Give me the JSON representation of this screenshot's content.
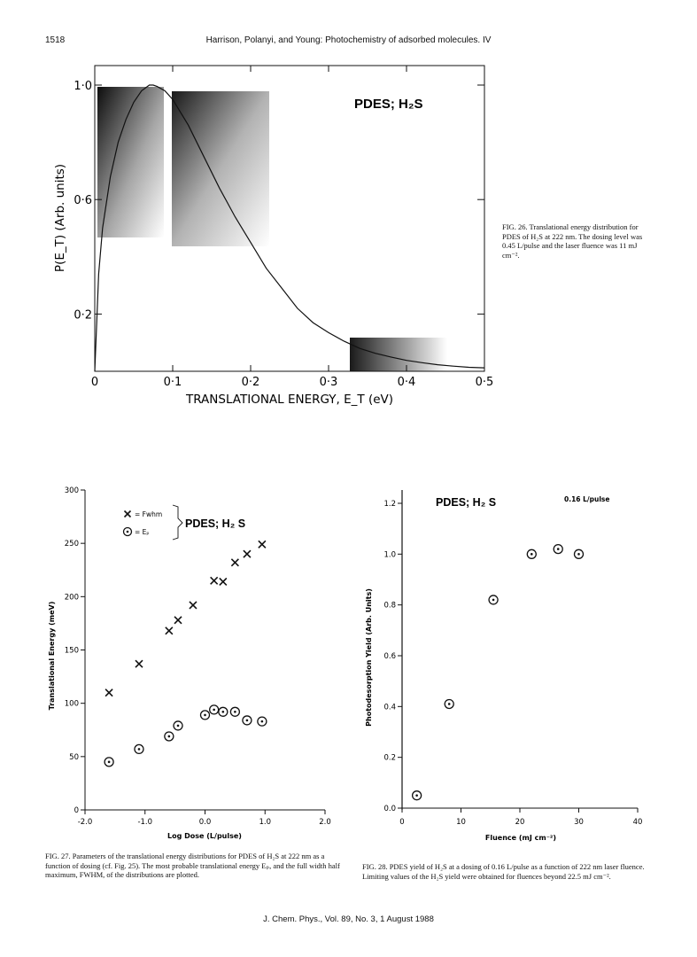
{
  "header": {
    "page_number": "1518",
    "running_title": "Harrison, Polanyi, and Young: Photochemistry of adsorbed molecules. IV"
  },
  "footer": {
    "citation": "J. Chem. Phys., Vol. 89, No. 3, 1 August 1988"
  },
  "figures": {
    "fig26": {
      "caption": "FIG. 26. Translational energy distribution for PDES of H₂S at 222 nm. The dosing level was 0.45 L/pulse and the laser fluence was 11 mJ cm⁻²."
    },
    "fig27": {
      "caption": "FIG. 27. Parameters of the translational energy distributions for PDES of H₂S at 222 nm as a function of dosing (cf. Fig. 25). The most probable translational energy Eₚ, and the full width half maximum, FWHM, of the distributions are plotted."
    },
    "fig28": {
      "caption": "FIG. 28. PDES yield of H₂S at a dosing of 0.16 L/pulse as a function of 222 nm laser fluence. Limiting values of the H₂S yield were obtained for fluences beyond 22.5 mJ cm⁻²."
    }
  },
  "chart_data": [
    {
      "id": "fig26",
      "type": "line",
      "title": "PDES; H₂S",
      "xlabel": "TRANSLATIONAL ENERGY, E_T (eV)",
      "ylabel": "P(E_T) (Arb. units)",
      "xlim": [
        0,
        0.5
      ],
      "ylim": [
        0,
        1.05
      ],
      "x_ticks": [
        {
          "v": 0,
          "label": "0"
        },
        {
          "v": 0.1,
          "label": "0·1"
        },
        {
          "v": 0.2,
          "label": "0·2"
        },
        {
          "v": 0.3,
          "label": "0·3"
        },
        {
          "v": 0.4,
          "label": "0·4"
        },
        {
          "v": 0.5,
          "label": "0·5"
        }
      ],
      "y_ticks": [
        {
          "v": 0.2,
          "label": "0·2"
        },
        {
          "v": 0.6,
          "label": "0·6"
        },
        {
          "v": 1.0,
          "label": "1·0"
        }
      ],
      "series": [
        {
          "x": [
            0,
            0.005,
            0.01,
            0.02,
            0.03,
            0.04,
            0.05,
            0.06,
            0.07,
            0.075,
            0.08,
            0.09,
            0.1,
            0.12,
            0.14,
            0.16,
            0.18,
            0.2,
            0.22,
            0.24,
            0.26,
            0.28,
            0.3,
            0.32,
            0.34,
            0.36,
            0.38,
            0.4,
            0.42,
            0.44,
            0.46,
            0.48,
            0.5
          ],
          "y": [
            0,
            0.34,
            0.5,
            0.68,
            0.8,
            0.88,
            0.94,
            0.98,
            1.0,
            1.0,
            0.995,
            0.98,
            0.95,
            0.86,
            0.75,
            0.64,
            0.54,
            0.45,
            0.36,
            0.29,
            0.22,
            0.17,
            0.135,
            0.105,
            0.08,
            0.063,
            0.05,
            0.038,
            0.03,
            0.023,
            0.018,
            0.014,
            0.012
          ]
        }
      ]
    },
    {
      "id": "fig27",
      "type": "scatter",
      "xlabel": "Log Dose (L/pulse)",
      "ylabel": "Translational Energy (meV)",
      "xlim": [
        -2.0,
        2.0
      ],
      "ylim": [
        0,
        300
      ],
      "x_ticks": [
        {
          "v": -2,
          "label": "-2.0"
        },
        {
          "v": -1,
          "label": "-1.0"
        },
        {
          "v": 0,
          "label": "0.0"
        },
        {
          "v": 1,
          "label": "1.0"
        },
        {
          "v": 2,
          "label": "2.0"
        }
      ],
      "y_ticks": [
        {
          "v": 0,
          "label": "0"
        },
        {
          "v": 50,
          "label": "50"
        },
        {
          "v": 100,
          "label": "100"
        },
        {
          "v": 150,
          "label": "150"
        },
        {
          "v": 200,
          "label": "200"
        },
        {
          "v": 250,
          "label": "250"
        },
        {
          "v": 300,
          "label": "300"
        }
      ],
      "legend": {
        "fwhm_label": "= Fwhm",
        "ep_label": "= Eₚ",
        "group_label": "PDES; H₂ S"
      },
      "series": [
        {
          "marker": "x",
          "x": [
            -1.6,
            -1.1,
            -0.6,
            -0.45,
            -0.2,
            0.15,
            0.3,
            0.5,
            0.7,
            0.95
          ],
          "y": [
            110,
            137,
            168,
            178,
            192,
            215,
            214,
            232,
            240,
            249
          ]
        },
        {
          "marker": "circle-dot",
          "x": [
            -1.6,
            -1.1,
            -0.6,
            -0.45,
            0.0,
            0.15,
            0.3,
            0.5,
            0.7,
            0.95
          ],
          "y": [
            45,
            57,
            69,
            79,
            89,
            94,
            92,
            92,
            84,
            83
          ]
        }
      ]
    },
    {
      "id": "fig28",
      "type": "scatter",
      "title": "PDES; H₂ S",
      "annotation": "0.16 L/pulse",
      "xlabel": "Fluence (mJ cm⁻²)",
      "ylabel": "Photodesorption Yield (Arb. Units)",
      "xlim": [
        0,
        40
      ],
      "ylim": [
        0,
        1.2
      ],
      "x_ticks": [
        {
          "v": 0,
          "label": "0"
        },
        {
          "v": 10,
          "label": "10"
        },
        {
          "v": 20,
          "label": "20"
        },
        {
          "v": 30,
          "label": "30"
        },
        {
          "v": 40,
          "label": "40"
        }
      ],
      "y_ticks": [
        {
          "v": 0,
          "label": "0.0"
        },
        {
          "v": 0.2,
          "label": "0.2"
        },
        {
          "v": 0.4,
          "label": "0.4"
        },
        {
          "v": 0.6,
          "label": "0.6"
        },
        {
          "v": 0.8,
          "label": "0.8"
        },
        {
          "v": 1.0,
          "label": "1.0"
        },
        {
          "v": 1.2,
          "label": "1.2"
        }
      ],
      "series": [
        {
          "marker": "circle-dot",
          "x": [
            2.5,
            8,
            15.5,
            22,
            26.5,
            30
          ],
          "y": [
            0.05,
            0.41,
            0.82,
            1.0,
            1.02,
            1.0
          ]
        }
      ]
    }
  ]
}
